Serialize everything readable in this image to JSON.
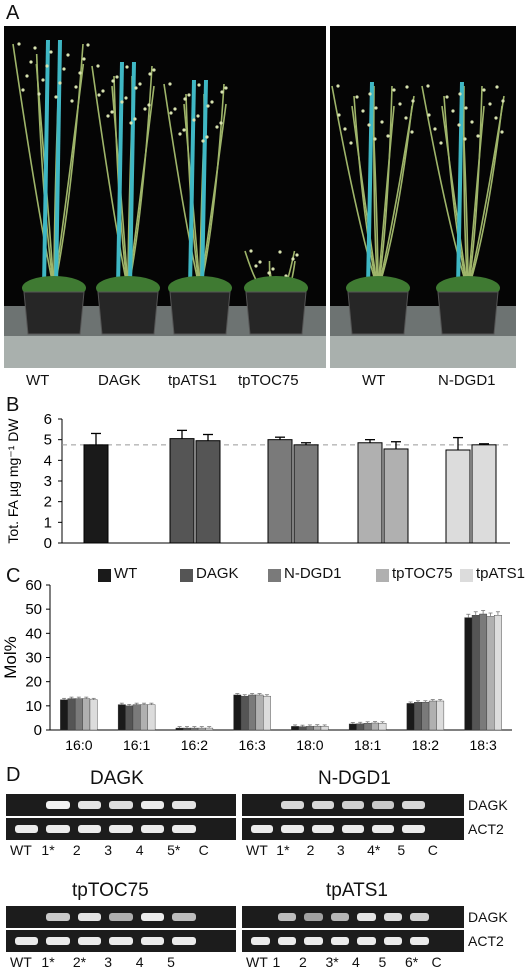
{
  "panel_a": {
    "letter": "A",
    "labels": [
      "WT",
      "DAGK",
      "tpATS1",
      "tpTOC75",
      "WT",
      "N-DGD1"
    ]
  },
  "panel_b": {
    "letter": "B",
    "ylabel": "Tot. FA µg mg⁻¹ DW"
  },
  "panel_c": {
    "letter": "C",
    "ylabel": "Mol%",
    "legend": [
      "WT",
      "DAGK",
      "N-DGD1",
      "tpTOC75",
      "tpATS1"
    ]
  },
  "panel_d": {
    "letter": "D",
    "gels": [
      {
        "title": "DAGK",
        "lanes": [
          "WT",
          "1*",
          "2",
          "3",
          "4",
          "5*",
          "C"
        ],
        "top_label": "",
        "bottom_label": ""
      },
      {
        "title": "N-DGD1",
        "lanes": [
          "WT",
          "1*",
          "2",
          "3",
          "4*",
          "5",
          "C"
        ],
        "top_label": "DAGK",
        "bottom_label": "ACT2"
      },
      {
        "title": "tpTOC75",
        "lanes": [
          "WT",
          "1*",
          "2*",
          "3",
          "4",
          "5"
        ],
        "top_label": "",
        "bottom_label": ""
      },
      {
        "title": "tpATS1",
        "lanes": [
          "WT",
          "1",
          "2",
          "3*",
          "4",
          "5",
          "6*",
          "C"
        ],
        "top_label": "DAGK",
        "bottom_label": "ACT2"
      }
    ]
  },
  "colors": {
    "WT": "#1a1a1a",
    "DAGK": "#555555",
    "N-DGD1": "#7a7a7a",
    "tpTOC75": "#b0b0b0",
    "tpATS1": "#dcdcdc"
  },
  "chart_data": [
    {
      "type": "bar",
      "ylabel": "Tot. FA µg mg⁻¹ DW",
      "ylim": [
        0,
        6
      ],
      "yticks": [
        0,
        1,
        2,
        3,
        4,
        5,
        6
      ],
      "reference_line": 4.75,
      "bars": [
        {
          "genotype": "WT",
          "value": 4.75,
          "error": 0.55
        },
        {
          "genotype": "DAGK",
          "value": 5.05,
          "error": 0.4
        },
        {
          "genotype": "DAGK",
          "value": 4.95,
          "error": 0.3
        },
        {
          "genotype": "N-DGD1",
          "value": 5.0,
          "error": 0.12
        },
        {
          "genotype": "N-DGD1",
          "value": 4.75,
          "error": 0.1
        },
        {
          "genotype": "tpTOC75",
          "value": 4.85,
          "error": 0.15
        },
        {
          "genotype": "tpTOC75",
          "value": 4.55,
          "error": 0.35
        },
        {
          "genotype": "tpATS1",
          "value": 4.5,
          "error": 0.6
        },
        {
          "genotype": "tpATS1",
          "value": 4.75,
          "error": 0.05
        }
      ]
    },
    {
      "type": "bar",
      "ylabel": "Mol%",
      "ylim": [
        0,
        60
      ],
      "yticks": [
        0,
        10,
        20,
        30,
        40,
        50,
        60
      ],
      "categories": [
        "16:0",
        "16:1",
        "16:2",
        "16:3",
        "18:0",
        "18:1",
        "18:2",
        "18:3"
      ],
      "series": [
        {
          "name": "WT",
          "values": [
            12.5,
            10.5,
            0.8,
            14.5,
            1.5,
            2.5,
            11.0,
            46.5
          ]
        },
        {
          "name": "DAGK",
          "values": [
            13.0,
            10.0,
            0.8,
            14.0,
            1.4,
            2.6,
            11.5,
            47.5
          ]
        },
        {
          "name": "N-DGD1",
          "values": [
            13.0,
            10.5,
            0.8,
            14.5,
            1.5,
            2.8,
            11.5,
            48.0
          ]
        },
        {
          "name": "tpTOC75",
          "values": [
            13.0,
            10.5,
            0.8,
            14.5,
            1.6,
            2.9,
            12.0,
            47.0
          ]
        },
        {
          "name": "tpATS1",
          "values": [
            12.5,
            10.5,
            0.8,
            14.0,
            1.5,
            2.8,
            12.0,
            47.5
          ]
        }
      ]
    }
  ]
}
